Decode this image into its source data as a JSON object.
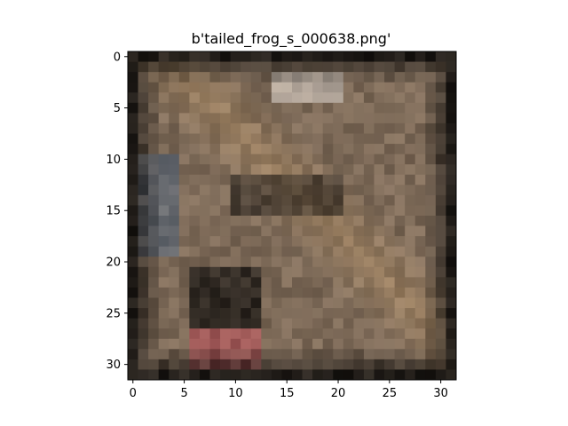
{
  "figure": {
    "title": "b'tailed_frog_s_000638.png'",
    "background": "#ffffff"
  },
  "image": {
    "description_colors": {
      "dark_border": "#141210",
      "brown_midtone": "#7d6a58",
      "highlight": "#d8d0c8",
      "blue_tint": "#5a6e86",
      "red_tint": "#b44c56"
    },
    "grid_size": [
      32,
      32
    ]
  },
  "axes": {
    "x_ticks": [
      "0",
      "5",
      "10",
      "15",
      "20",
      "25",
      "30"
    ],
    "y_ticks": [
      "0",
      "5",
      "10",
      "15",
      "20",
      "25",
      "30"
    ]
  }
}
